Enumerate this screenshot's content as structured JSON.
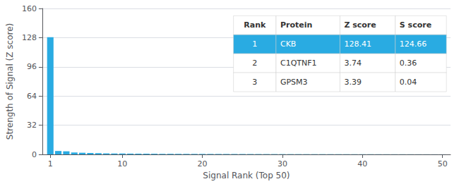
{
  "chart_data": {
    "type": "bar",
    "xlabel": "Signal Rank (Top 50)",
    "ylabel": "Strength of Signal (Z score)",
    "x": [
      1,
      2,
      3,
      4,
      5,
      6,
      7,
      8,
      9,
      10,
      11,
      12,
      13,
      14,
      15,
      16,
      17,
      18,
      19,
      20,
      21,
      22,
      23,
      24,
      25,
      26,
      27,
      28,
      29,
      30,
      31,
      32,
      33,
      34,
      35,
      36,
      37,
      38,
      39,
      40,
      41,
      42,
      43,
      44,
      45,
      46,
      47,
      48,
      49,
      50
    ],
    "values": [
      128.41,
      3.74,
      3.39,
      2.1,
      1.8,
      1.5,
      1.3,
      1.1,
      1.0,
      0.9,
      0.85,
      0.8,
      0.75,
      0.7,
      0.65,
      0.62,
      0.58,
      0.55,
      0.52,
      0.5,
      0.48,
      0.46,
      0.44,
      0.42,
      0.4,
      0.38,
      0.36,
      0.34,
      0.32,
      0.3,
      0.28,
      0.27,
      0.26,
      0.25,
      0.24,
      0.23,
      0.22,
      0.21,
      0.2,
      0.19,
      0.18,
      0.17,
      0.16,
      0.15,
      0.14,
      0.13,
      0.12,
      0.11,
      0.1,
      0.09
    ],
    "color": "#29ABE2",
    "xlim": [
      0,
      51
    ],
    "xticks": [
      1,
      10,
      20,
      30,
      40,
      50
    ],
    "ylim": [
      0,
      160
    ],
    "yticks": [
      0,
      32,
      64,
      96,
      128,
      160
    ],
    "grid": true,
    "table": [
      [
        "Rank",
        "Protein",
        "Z score",
        "S score"
      ],
      [
        "1",
        "CKB",
        "128.41",
        "124.66"
      ],
      [
        "2",
        "C1QTNF1",
        "3.74",
        "0.36"
      ],
      [
        "3",
        "GPSM3",
        "3.39",
        "0.04"
      ]
    ]
  }
}
